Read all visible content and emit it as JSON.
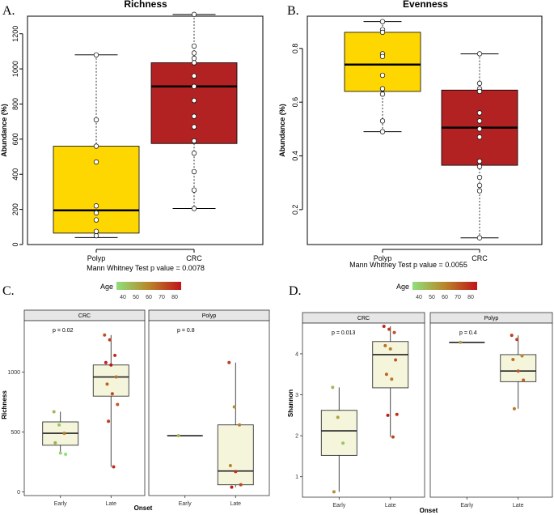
{
  "figure": {
    "legend": {
      "title": "Age",
      "ticks": [
        "40",
        "50",
        "60",
        "70",
        "80"
      ],
      "color_low": "#8fe07a",
      "color_mid": "#b8862a",
      "color_high": "#c0141a"
    }
  },
  "chart_data": [
    {
      "panel": "A.",
      "type": "box",
      "title": "Richness",
      "ylabel": "Abundance (%)",
      "xlabel": "",
      "ylim": [
        0,
        1300
      ],
      "yticks": [
        0,
        200,
        400,
        600,
        800,
        1000,
        1200
      ],
      "categories": [
        "Polyp",
        "CRC"
      ],
      "colors": [
        "#ffd700",
        "#b22222"
      ],
      "boxes": [
        {
          "name": "Polyp",
          "min": 40,
          "q1": 65,
          "median": 195,
          "q3": 560,
          "max": 1080
        },
        {
          "name": "CRC",
          "min": 205,
          "q1": 575,
          "median": 900,
          "q3": 1035,
          "max": 1310
        }
      ],
      "points": [
        [
          1080,
          710,
          560,
          470,
          220,
          180,
          140,
          75,
          50
        ],
        [
          1310,
          1130,
          1090,
          1060,
          1035,
          960,
          900,
          820,
          730,
          670,
          590,
          520,
          415,
          310,
          205
        ]
      ],
      "note": "Mann Whitney Test p value = 0.0078"
    },
    {
      "panel": "B.",
      "type": "box",
      "title": "Evenness",
      "ylabel": "Abundance (%)",
      "xlabel": "",
      "ylim": [
        0.07,
        0.92
      ],
      "yticks": [
        0.2,
        0.4,
        0.6,
        0.8
      ],
      "categories": [
        "Polyp",
        "CRC"
      ],
      "colors": [
        "#ffd700",
        "#b22222"
      ],
      "boxes": [
        {
          "name": "Polyp",
          "min": 0.49,
          "q1": 0.64,
          "median": 0.74,
          "q3": 0.86,
          "max": 0.9
        },
        {
          "name": "CRC",
          "min": 0.095,
          "q1": 0.365,
          "median": 0.505,
          "q3": 0.645,
          "max": 0.78
        }
      ],
      "points": [
        [
          0.9,
          0.87,
          0.86,
          0.78,
          0.77,
          0.7,
          0.65,
          0.63,
          0.53,
          0.49
        ],
        [
          0.78,
          0.67,
          0.65,
          0.64,
          0.56,
          0.53,
          0.5,
          0.47,
          0.38,
          0.36,
          0.32,
          0.29,
          0.27,
          0.095
        ]
      ],
      "note": "Mann Whitney Test p value = 0.0055"
    },
    {
      "panel": "C.",
      "type": "box",
      "title": "",
      "ylabel": "Richness",
      "xlabel": "Onset",
      "ylim": [
        -30,
        1430
      ],
      "yticks": [
        0,
        500,
        1000
      ],
      "facets": [
        {
          "strip": "CRC",
          "pvalue": "p = 0.02",
          "categories": [
            "Early",
            "Late"
          ],
          "boxes": [
            {
              "name": "Early",
              "min": 320,
              "q1": 390,
              "median": 490,
              "q3": 585,
              "max": 670
            },
            {
              "name": "Late",
              "min": 210,
              "q1": 800,
              "median": 960,
              "q3": 1060,
              "max": 1310
            }
          ],
          "points": [
            [
              [
                670,
                45
              ],
              [
                560,
                42
              ],
              [
                490,
                60
              ],
              [
                410,
                48
              ],
              [
                325,
                38
              ],
              [
                315,
                35
              ]
            ],
            [
              [
                1310,
                68
              ],
              [
                1270,
                72
              ],
              [
                1140,
                75
              ],
              [
                1080,
                78
              ],
              [
                1060,
                80
              ],
              [
                960,
                62
              ],
              [
                900,
                64
              ],
              [
                820,
                70
              ],
              [
                730,
                66
              ],
              [
                590,
                72
              ],
              [
                210,
                76
              ]
            ]
          ]
        },
        {
          "strip": "Polyp",
          "pvalue": "p = 0.8",
          "categories": [
            "Early",
            "Late"
          ],
          "boxes": [
            {
              "name": "Early",
              "min": 470,
              "q1": 470,
              "median": 470,
              "q3": 470,
              "max": 470
            },
            {
              "name": "Late",
              "min": 40,
              "q1": 60,
              "median": 175,
              "q3": 560,
              "max": 1080
            }
          ],
          "points": [
            [
              [
                470,
                45
              ]
            ],
            [
              [
                1080,
                72
              ],
              [
                710,
                55
              ],
              [
                560,
                60
              ],
              [
                220,
                58
              ],
              [
                170,
                75
              ],
              [
                60,
                70
              ],
              [
                40,
                78
              ]
            ]
          ]
        }
      ]
    },
    {
      "panel": "D.",
      "type": "box",
      "title": "",
      "ylabel": "Shannon",
      "xlabel": "Onset",
      "ylim": [
        0.5,
        4.75
      ],
      "yticks": [
        1,
        2,
        3,
        4
      ],
      "facets": [
        {
          "strip": "CRC",
          "pvalue": "p = 0.013",
          "categories": [
            "Early",
            "Late"
          ],
          "boxes": [
            {
              "name": "Early",
              "min": 0.63,
              "q1": 1.52,
              "median": 2.12,
              "q3": 2.62,
              "max": 3.18
            },
            {
              "name": "Late",
              "min": 1.97,
              "q1": 3.17,
              "median": 3.98,
              "q3": 4.3,
              "max": 4.67
            }
          ],
          "points": [
            [
              [
                3.18,
                45
              ],
              [
                2.45,
                50
              ],
              [
                1.82,
                42
              ],
              [
                0.63,
                55
              ]
            ],
            [
              [
                4.67,
                76
              ],
              [
                4.6,
                72
              ],
              [
                4.52,
                68
              ],
              [
                4.2,
                62
              ],
              [
                4.12,
                58
              ],
              [
                3.85,
                66
              ],
              [
                3.5,
                64
              ],
              [
                3.38,
                60
              ],
              [
                2.52,
                74
              ],
              [
                2.5,
                78
              ],
              [
                1.97,
                70
              ]
            ]
          ]
        },
        {
          "strip": "Polyp",
          "pvalue": "p = 0.4",
          "categories": [
            "Early",
            "Late"
          ],
          "boxes": [
            {
              "name": "Early",
              "min": 4.28,
              "q1": 4.28,
              "median": 4.28,
              "q3": 4.28,
              "max": 4.28
            },
            {
              "name": "Late",
              "min": 2.66,
              "q1": 3.32,
              "median": 3.58,
              "q3": 3.98,
              "max": 4.45
            }
          ],
          "points": [
            [
              [
                4.28,
                50
              ]
            ],
            [
              [
                4.45,
                72
              ],
              [
                4.35,
                70
              ],
              [
                3.95,
                58
              ],
              [
                3.86,
                62
              ],
              [
                3.58,
                66
              ],
              [
                3.36,
                64
              ],
              [
                2.66,
                60
              ]
            ]
          ]
        }
      ]
    }
  ]
}
